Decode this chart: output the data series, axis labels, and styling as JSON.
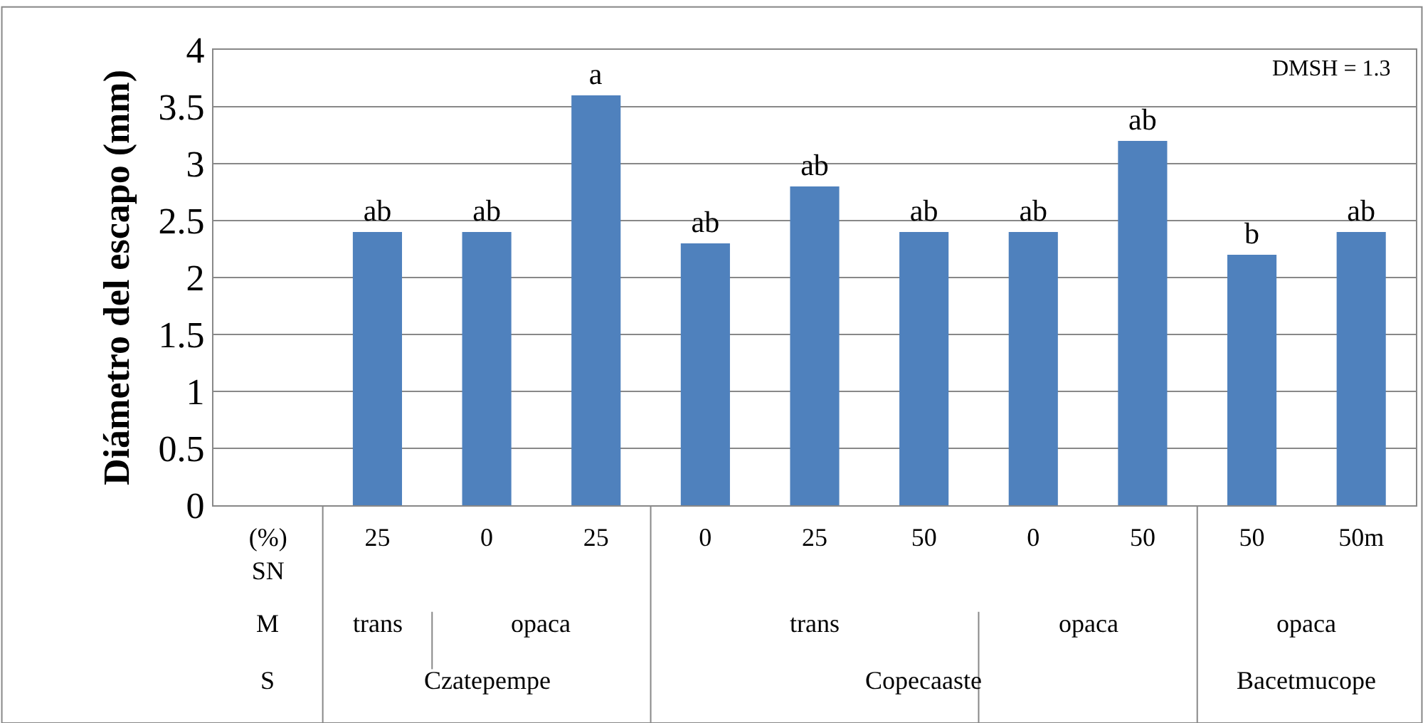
{
  "chart_data": {
    "type": "bar",
    "ylabel": "Diámetro del escapo (mm)",
    "categories": [
      "(%) SN",
      "25",
      "0",
      "25",
      "0",
      "25",
      "50",
      "0",
      "50",
      "50",
      "50m"
    ],
    "values": [
      null,
      2.4,
      2.4,
      3.6,
      2.3,
      2.8,
      2.4,
      2.4,
      3.2,
      2.2,
      2.4
    ],
    "value_labels": [
      null,
      "ab",
      "ab",
      "a",
      "ab",
      "ab",
      "ab",
      "ab",
      "ab",
      "b",
      "ab"
    ],
    "color": "#4f81bd",
    "ylim": [
      0,
      4
    ],
    "yticks": [
      0,
      0.5,
      1,
      1.5,
      2,
      2.5,
      3,
      3.5,
      4
    ],
    "grid": "y",
    "legend": false,
    "annotations": [
      "DMSH = 1.3",
      "M",
      "trans",
      "opaca",
      "trans",
      "opaca",
      "opaca",
      "S",
      "Czatepempe",
      "Copecaaste",
      "Bacetmucope"
    ]
  }
}
